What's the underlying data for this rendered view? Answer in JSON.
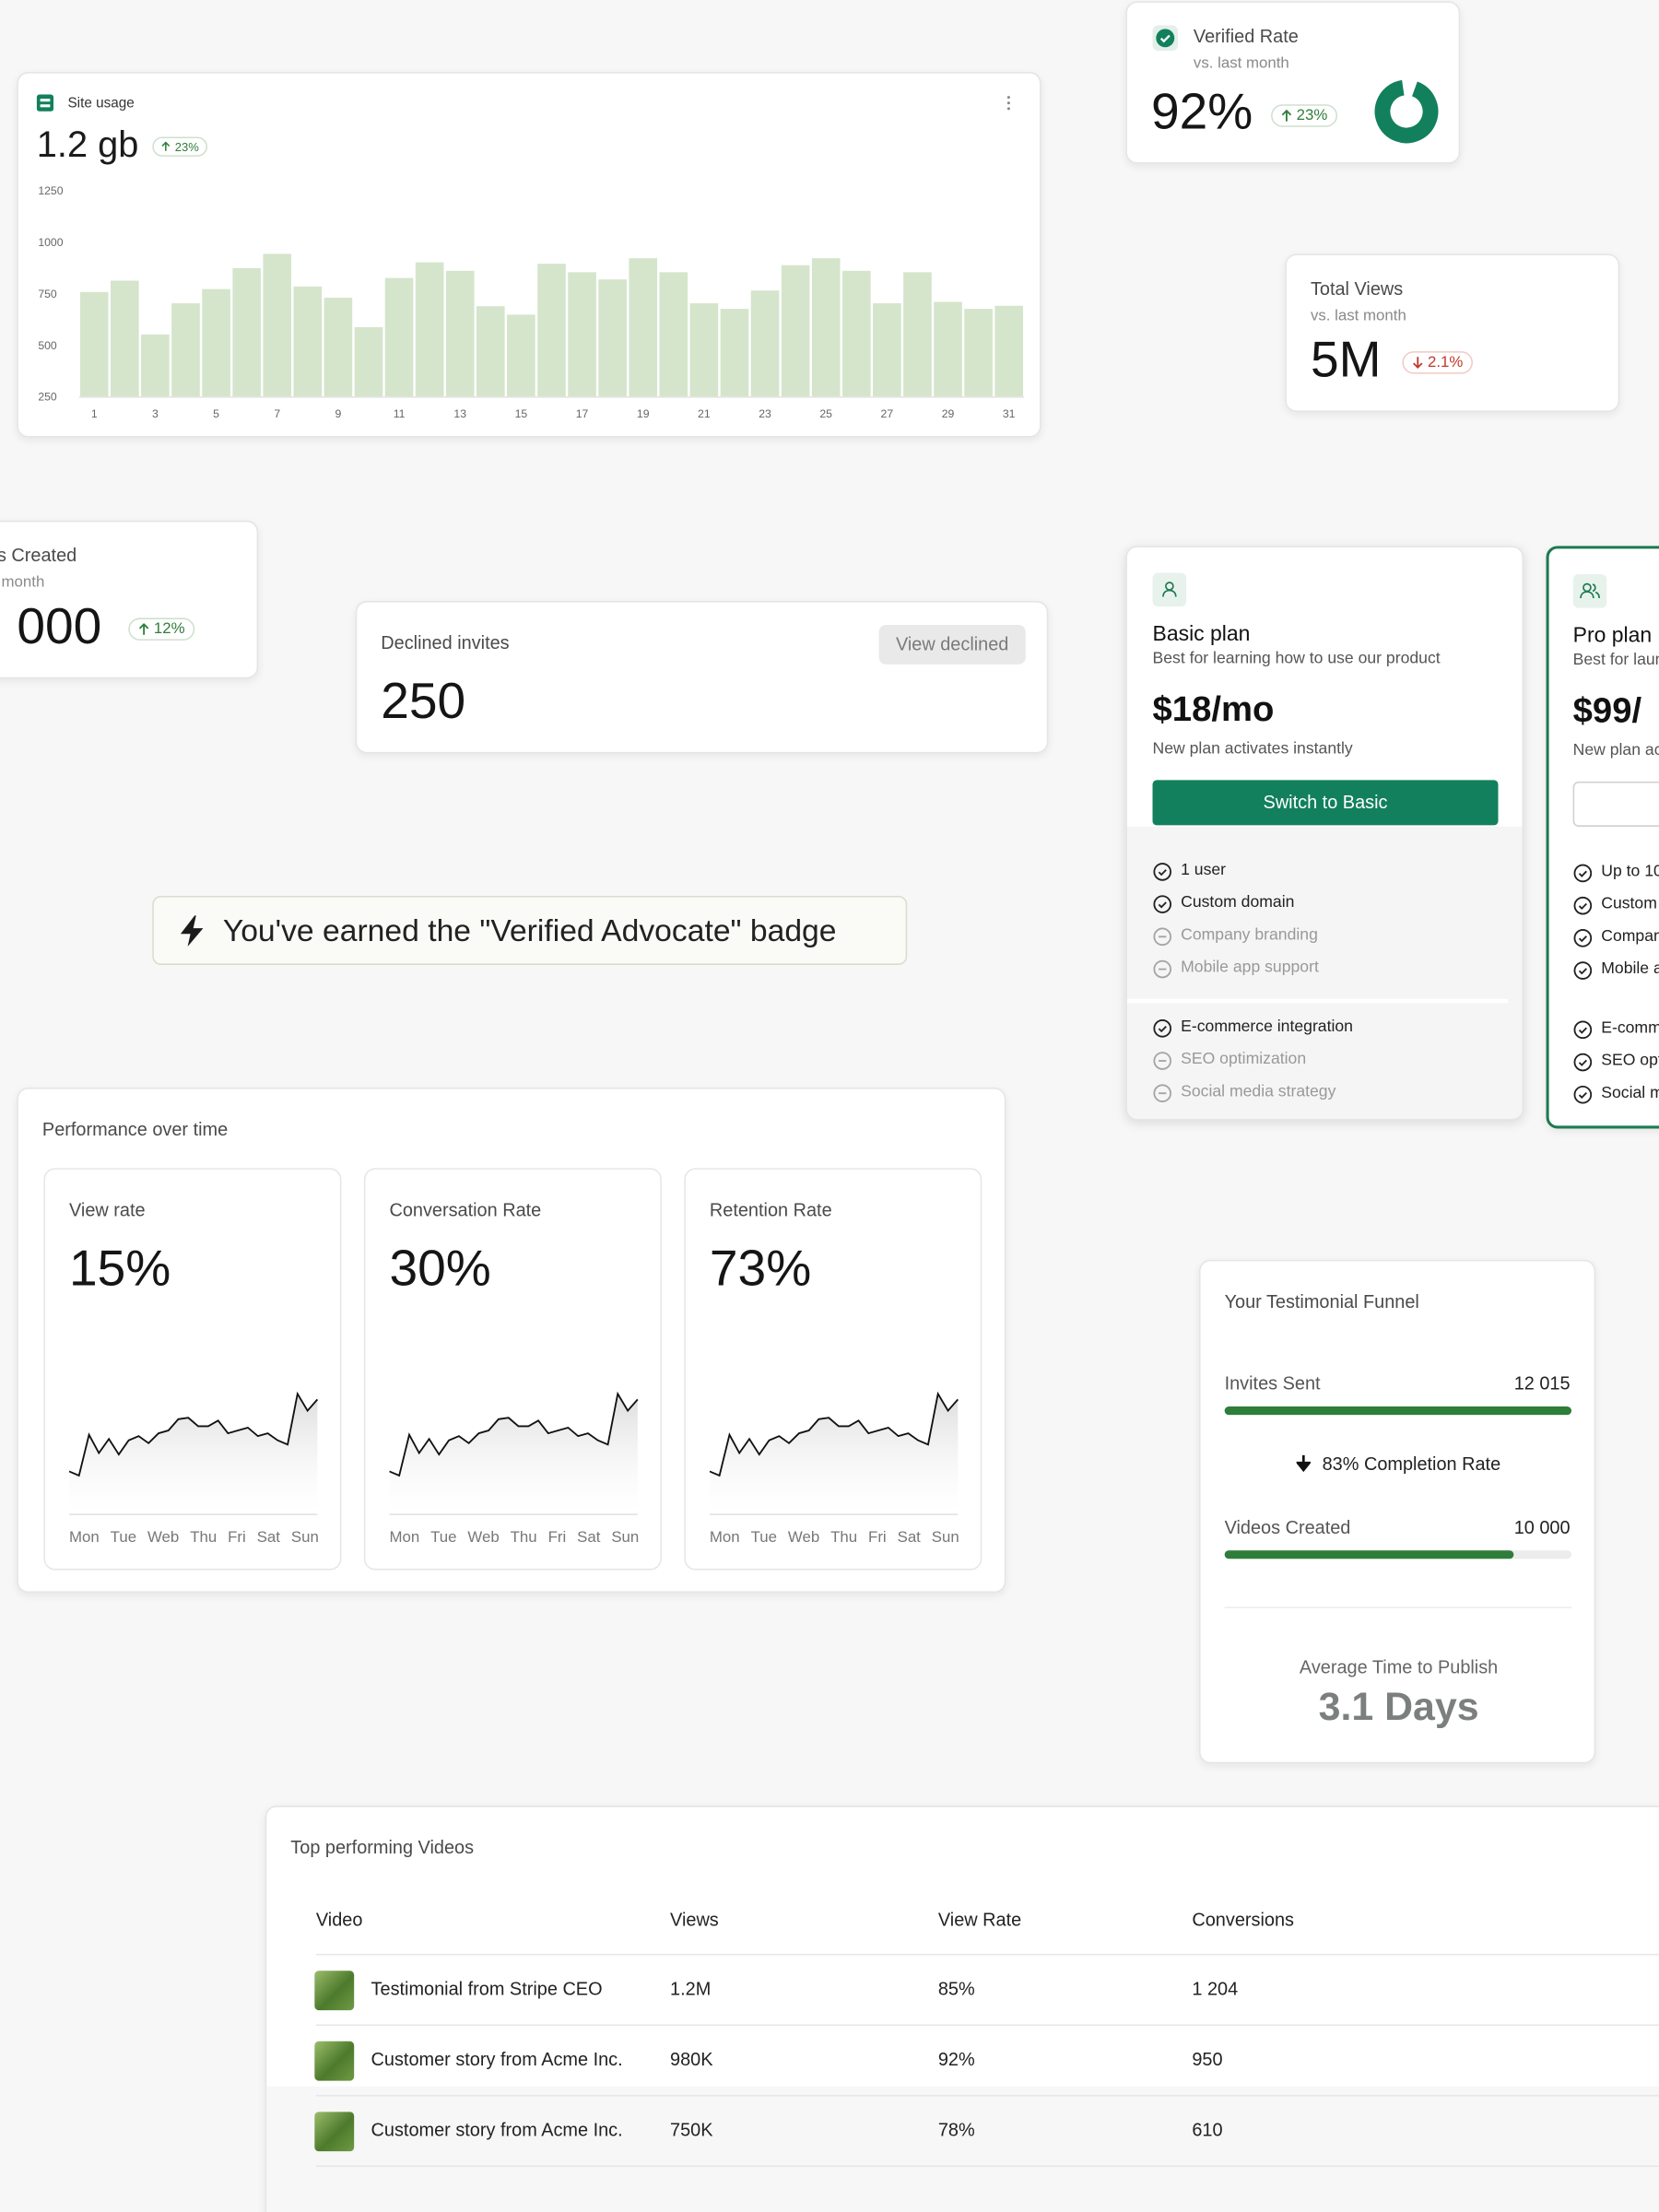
{
  "site_usage": {
    "title": "Site usage",
    "value": "1.2 gb",
    "change": "23%"
  },
  "verified_rate": {
    "title": "Verified Rate",
    "subtitle": "vs. last month",
    "value": 92,
    "value_label": "92%",
    "change": "23%"
  },
  "total_views": {
    "title": "Total Views",
    "subtitle": "vs. last month",
    "value": "5M",
    "change": "2.1%"
  },
  "videos_created_card": {
    "title": "s Created",
    "subtitle": "month",
    "value": "000",
    "change": "12%"
  },
  "declined": {
    "title": "Declined invites",
    "action": "View declined",
    "value": "250"
  },
  "badge": {
    "text": "You've earned the \"Verified Advocate\" badge"
  },
  "performance": {
    "title": "Performance over time"
  },
  "chart_data": [
    {
      "type": "bar",
      "color": "#d5e5cc",
      "grid": false,
      "categories": [
        "1",
        null,
        "3",
        null,
        "5",
        null,
        "7",
        null,
        "9",
        null,
        "11",
        null,
        "13",
        null,
        "15",
        null,
        "17",
        null,
        "19",
        null,
        "21",
        null,
        "23",
        null,
        "25",
        null,
        "27",
        null,
        "29",
        null,
        "31"
      ],
      "values": [
        757,
        812,
        551,
        702,
        771,
        873,
        942,
        784,
        729,
        586,
        825,
        901,
        860,
        688,
        647,
        894,
        853,
        818,
        921,
        853,
        702,
        675,
        764,
        887,
        921,
        860,
        702,
        853,
        709,
        675,
        690
      ],
      "ylim": [
        250,
        1250
      ],
      "yticks": [
        250,
        500,
        750,
        1000,
        1250
      ]
    },
    {
      "type": "line",
      "title": "View rate",
      "headline": "15%",
      "color": "#111111",
      "day_labels": [
        "Mon",
        "Tue",
        "Web",
        "Thu",
        "Fri",
        "Sat",
        "Sun"
      ],
      "values": [
        30,
        27,
        56,
        43,
        53,
        42,
        52,
        55,
        50,
        57,
        59,
        67,
        68,
        62,
        62,
        66,
        57,
        59,
        61,
        55,
        57,
        52,
        49,
        85,
        73,
        81
      ],
      "ylim": [
        0,
        100
      ]
    },
    {
      "type": "line",
      "title": "Conversation Rate",
      "headline": "30%",
      "color": "#111111",
      "day_labels": [
        "Mon",
        "Tue",
        "Web",
        "Thu",
        "Fri",
        "Sat",
        "Sun"
      ],
      "values": [
        30,
        27,
        56,
        43,
        53,
        42,
        52,
        55,
        50,
        57,
        59,
        67,
        68,
        62,
        62,
        66,
        57,
        59,
        61,
        55,
        57,
        52,
        49,
        85,
        73,
        81
      ],
      "ylim": [
        0,
        100
      ]
    },
    {
      "type": "line",
      "title": "Retention Rate",
      "headline": "73%",
      "color": "#111111",
      "day_labels": [
        "Mon",
        "Tue",
        "Web",
        "Thu",
        "Fri",
        "Sat",
        "Sun"
      ],
      "values": [
        30,
        27,
        56,
        43,
        53,
        42,
        52,
        55,
        50,
        57,
        59,
        67,
        68,
        62,
        62,
        66,
        57,
        59,
        61,
        55,
        57,
        52,
        49,
        85,
        73,
        81
      ],
      "ylim": [
        0,
        100
      ]
    }
  ],
  "plans": [
    {
      "name": "Basic plan",
      "description": "Best for learning how to use our product",
      "price": "$18/mo",
      "note": "New plan activates instantly",
      "button": "Switch to Basic",
      "feature_groups": [
        [
          {
            "text": "1 user",
            "included": true
          },
          {
            "text": "Custom domain",
            "included": true
          },
          {
            "text": "Company branding",
            "included": false
          },
          {
            "text": "Mobile app support",
            "included": false
          }
        ],
        [
          {
            "text": "E-commerce integration",
            "included": true
          },
          {
            "text": "SEO optimization",
            "included": false
          },
          {
            "text": "Social media strategy",
            "included": false
          }
        ]
      ]
    },
    {
      "name": "Pro plan",
      "description": "Best for laun",
      "price": "$99/",
      "note": "New plan ac",
      "feature_groups": [
        [
          {
            "text": "Up to 10",
            "included": true
          },
          {
            "text": "Custom",
            "included": true
          },
          {
            "text": "Compan",
            "included": true
          },
          {
            "text": "Mobile a",
            "included": true
          }
        ],
        [
          {
            "text": "E-comm",
            "included": true
          },
          {
            "text": "SEO opt",
            "included": true
          },
          {
            "text": "Social m",
            "included": true
          }
        ]
      ]
    }
  ],
  "funnel": {
    "title": "Your Testimonial Funnel",
    "stages": [
      {
        "label": "Invites Sent",
        "value": 12015,
        "value_label": "12 015"
      },
      {
        "label": "Videos Created",
        "value": 10000,
        "value_label": "10 000"
      }
    ],
    "completion": "83% Completion Rate",
    "average_label": "Average Time to Publish",
    "average_value": "3.1 Days"
  },
  "table": {
    "title": "Top performing Videos",
    "columns": [
      "Video",
      "Views",
      "View Rate",
      "Conversions"
    ],
    "rows": [
      [
        "Testimonial from Stripe CEO",
        "1.2M",
        "85%",
        "1 204"
      ],
      [
        "Customer story from Acme Inc.",
        "980K",
        "92%",
        "950"
      ],
      [
        "Customer story from Acme Inc.",
        "750K",
        "78%",
        "610"
      ]
    ]
  }
}
